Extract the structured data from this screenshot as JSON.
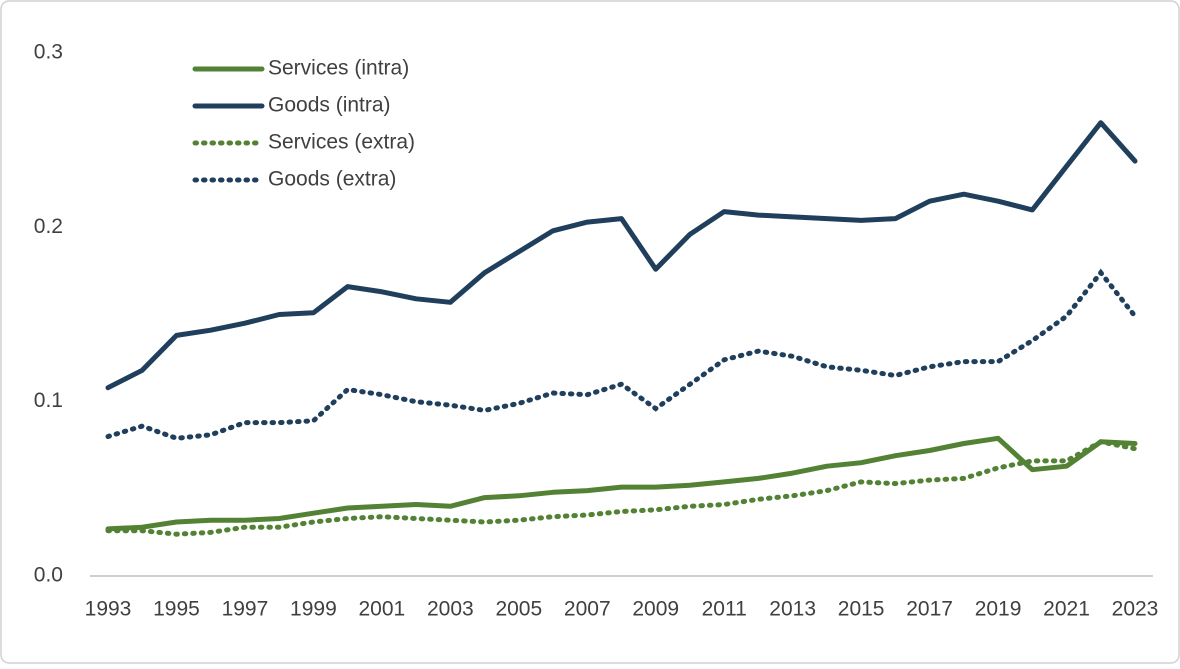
{
  "chart_data": {
    "type": "line",
    "x": [
      1993,
      1994,
      1995,
      1996,
      1997,
      1998,
      1999,
      2000,
      2001,
      2002,
      2003,
      2004,
      2005,
      2006,
      2007,
      2008,
      2009,
      2010,
      2011,
      2012,
      2013,
      2014,
      2015,
      2016,
      2017,
      2018,
      2019,
      2020,
      2021,
      2022,
      2023
    ],
    "xlim": [
      1993,
      2023
    ],
    "xticks": [
      1993,
      1995,
      1997,
      1999,
      2001,
      2003,
      2005,
      2007,
      2009,
      2011,
      2013,
      2015,
      2017,
      2019,
      2021,
      2023
    ],
    "ylim": [
      0,
      0.3
    ],
    "yticks": [
      {
        "value": 0,
        "label": "0.0"
      },
      0.1,
      0.2,
      0.3
    ],
    "grid": false,
    "legend": "top-left",
    "series": [
      {
        "name": "Services (intra)",
        "color": "#548235",
        "style": "solid",
        "values": [
          0.027,
          0.028,
          0.031,
          0.032,
          0.032,
          0.033,
          0.036,
          0.039,
          0.04,
          0.041,
          0.04,
          0.045,
          0.046,
          0.048,
          0.049,
          0.051,
          0.051,
          0.052,
          0.054,
          0.056,
          0.059,
          0.063,
          0.065,
          0.069,
          0.072,
          0.076,
          0.079,
          0.061,
          0.063,
          0.077,
          0.076
        ]
      },
      {
        "name": "Goods (intra)",
        "color": "#203f5c",
        "style": "solid",
        "values": [
          0.108,
          0.118,
          0.138,
          0.141,
          0.145,
          0.15,
          0.151,
          0.166,
          0.163,
          0.159,
          0.157,
          0.174,
          0.186,
          0.198,
          0.203,
          0.205,
          0.176,
          0.196,
          0.209,
          0.207,
          0.206,
          0.205,
          0.204,
          0.205,
          0.215,
          0.219,
          0.215,
          0.21,
          0.235,
          0.26,
          0.238
        ]
      },
      {
        "name": "Services (extra)",
        "color": "#548235",
        "style": "dotted",
        "values": [
          0.026,
          0.026,
          0.024,
          0.025,
          0.028,
          0.028,
          0.031,
          0.033,
          0.034,
          0.033,
          0.032,
          0.031,
          0.032,
          0.034,
          0.035,
          0.037,
          0.038,
          0.04,
          0.041,
          0.044,
          0.046,
          0.049,
          0.054,
          0.053,
          0.055,
          0.056,
          0.062,
          0.066,
          0.066,
          0.077,
          0.073
        ]
      },
      {
        "name": "Goods (extra)",
        "color": "#203f5c",
        "style": "dotted",
        "values": [
          0.08,
          0.086,
          0.079,
          0.081,
          0.088,
          0.088,
          0.089,
          0.107,
          0.104,
          0.1,
          0.098,
          0.095,
          0.099,
          0.105,
          0.104,
          0.11,
          0.096,
          0.11,
          0.124,
          0.129,
          0.126,
          0.12,
          0.118,
          0.115,
          0.12,
          0.123,
          0.123,
          0.135,
          0.149,
          0.174,
          0.149
        ]
      }
    ]
  }
}
